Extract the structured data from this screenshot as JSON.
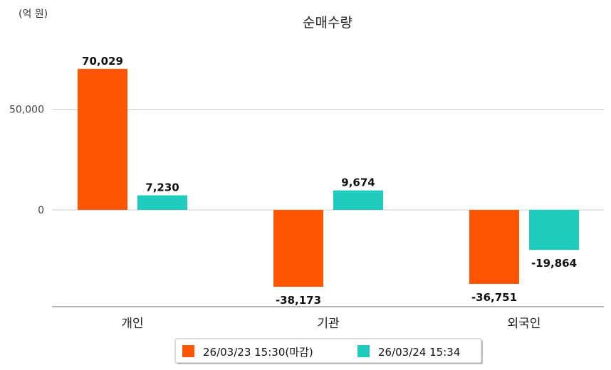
{
  "chart_data": {
    "type": "bar",
    "title": "순매수량",
    "unit_label": "(억 원)",
    "categories": [
      "개인",
      "기관",
      "외국인"
    ],
    "series": [
      {
        "name": "26/03/23 15:30(마감)",
        "color": "#ff5500",
        "values": [
          70029,
          -38173,
          -36751
        ],
        "labels": [
          "70,029",
          "-38,173",
          "-36,751"
        ]
      },
      {
        "name": "26/03/24 15:34",
        "color": "#1fcbbd",
        "values": [
          7230,
          9674,
          -19864
        ],
        "labels": [
          "7,230",
          "9,674",
          "-19,864"
        ]
      }
    ],
    "yticks": [
      0,
      50000
    ],
    "ytick_labels": [
      "0",
      "50,000"
    ],
    "ylim": [
      -48000,
      80000
    ],
    "grid": true,
    "legend_position": "bottom"
  }
}
